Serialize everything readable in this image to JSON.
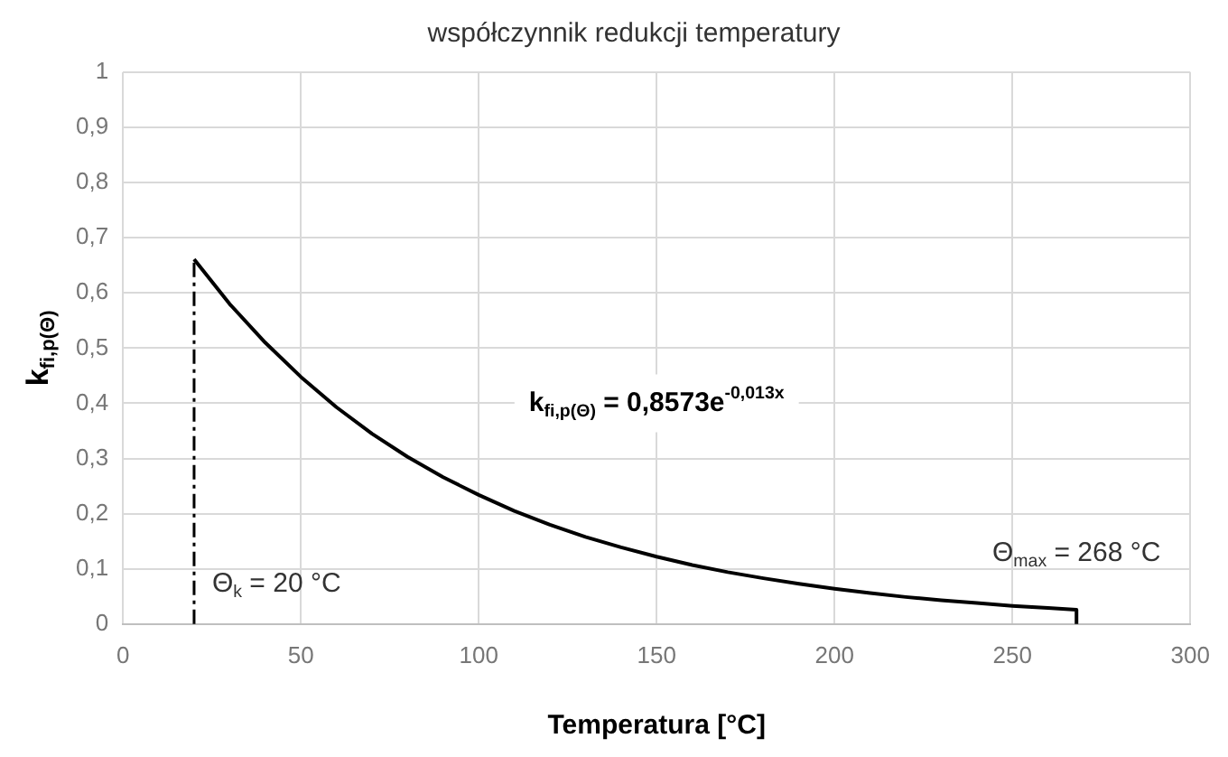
{
  "chart_data": {
    "type": "line",
    "title": "współczynnik redukcji temperatury",
    "xlabel": "Temperatura [°C]",
    "ylabel": "k$_{fi,p(Θ)}$",
    "xlim": [
      0,
      300
    ],
    "xticks": [
      0,
      50,
      100,
      150,
      200,
      250,
      300
    ],
    "ylim": [
      0,
      1
    ],
    "yticks": [
      0,
      {
        "value": 0.1,
        "label": "0,1"
      },
      {
        "value": 0.2,
        "label": "0,2"
      },
      {
        "value": 0.3,
        "label": "0,3"
      },
      {
        "value": 0.4,
        "label": "0,4"
      },
      {
        "value": 0.5,
        "label": "0,5"
      },
      {
        "value": 0.6,
        "label": "0,6"
      },
      {
        "value": 0.7,
        "label": "0,7"
      },
      {
        "value": 0.8,
        "label": "0,8"
      },
      {
        "value": 0.9,
        "label": "0,9"
      },
      1
    ],
    "grid": true,
    "legend": false,
    "marker": "none",
    "line_style": "solid",
    "series": [
      {
        "color": "#000000",
        "x": [
          20,
          30,
          40,
          50,
          60,
          70,
          80,
          90,
          100,
          110,
          120,
          130,
          140,
          150,
          160,
          170,
          180,
          190,
          200,
          210,
          220,
          230,
          240,
          250,
          260,
          268,
          268
        ],
        "values": [
          0.661,
          0.58,
          0.51,
          0.448,
          0.393,
          0.345,
          0.303,
          0.266,
          0.234,
          0.205,
          0.18,
          0.158,
          0.139,
          0.122,
          0.107,
          0.094,
          0.083,
          0.073,
          0.064,
          0.056,
          0.049,
          0.043,
          0.038,
          0.033,
          0.029,
          0.026,
          0
        ]
      }
    ],
    "ref_lines": [
      {
        "axis": "x",
        "value": 20,
        "label": "Θ$_{k}$ = 20 °C",
        "color": "#000000",
        "line_style": "dashdot"
      }
    ],
    "annotations": [
      "k$_{fi,p(Θ)}$ = 0,8573e$^{-0,013x}$",
      {
        "text": "Θ$_{max}$ = 268 °C",
        "x": 268,
        "y": 0.03
      }
    ]
  }
}
